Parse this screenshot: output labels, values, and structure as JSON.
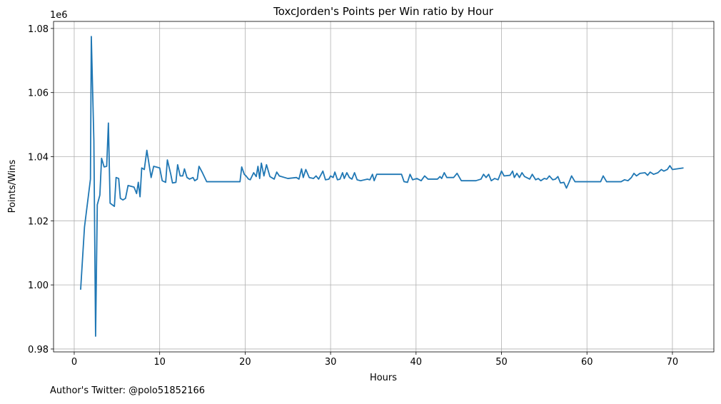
{
  "chart_data": {
    "type": "line",
    "title": "ToxcJorden's Points per Win ratio by Hour",
    "xlabel": "Hours",
    "ylabel": "Points/Wins",
    "offset_label": "1e6",
    "footnote": "Author's Twitter: @polo51852166",
    "color": "#1f77b4",
    "grid": true,
    "xlim": [
      -2.42,
      74.85
    ],
    "ylim": [
      0.9791,
      1.0822
    ],
    "xticks": [
      0,
      10,
      20,
      30,
      40,
      50,
      60,
      70
    ],
    "yticks": [
      0.98,
      {
        "value": 1,
        "label": "1.00"
      },
      1.02,
      1.04,
      1.06,
      1.08
    ],
    "x": [
      0.75,
      1.2,
      1.9,
      2.0,
      2.3,
      2.5,
      2.7,
      3.0,
      3.2,
      3.5,
      3.8,
      4.0,
      4.2,
      4.7,
      4.9,
      5.2,
      5.4,
      5.7,
      6.0,
      6.3,
      7.0,
      7.3,
      7.5,
      7.7,
      7.9,
      8.2,
      8.5,
      9.0,
      9.3,
      10.0,
      10.3,
      10.7,
      10.9,
      11.3,
      11.5,
      11.9,
      12.1,
      12.4,
      12.7,
      12.9,
      13.2,
      13.5,
      13.9,
      14.1,
      14.4,
      14.6,
      15.0,
      15.5,
      19.4,
      19.6,
      19.9,
      20.1,
      20.4,
      20.6,
      21.0,
      21.3,
      21.5,
      21.7,
      21.9,
      22.2,
      22.5,
      22.9,
      23.4,
      23.7,
      24.0,
      25.0,
      26.0,
      26.3,
      26.6,
      26.8,
      27.1,
      27.5,
      28.0,
      28.3,
      28.6,
      29.1,
      29.4,
      29.8,
      30.0,
      30.3,
      30.5,
      30.8,
      31.1,
      31.4,
      31.6,
      31.9,
      32.2,
      32.5,
      32.8,
      33.1,
      33.5,
      34.3,
      34.6,
      34.9,
      35.1,
      35.4,
      38.3,
      38.6,
      39.0,
      39.3,
      39.6,
      40.1,
      40.6,
      41.0,
      41.4,
      42.5,
      42.8,
      43.0,
      43.3,
      43.6,
      44.4,
      44.8,
      45.3,
      47.0,
      47.6,
      47.9,
      48.2,
      48.5,
      48.8,
      49.2,
      49.6,
      50.0,
      50.3,
      51.0,
      51.3,
      51.5,
      51.8,
      52.1,
      52.4,
      52.7,
      53.3,
      53.6,
      54.0,
      54.3,
      54.6,
      55.0,
      55.3,
      55.6,
      56.0,
      56.3,
      56.6,
      56.9,
      57.3,
      57.6,
      57.9,
      58.2,
      58.6,
      61.6,
      61.9,
      62.3,
      64.0,
      64.4,
      64.8,
      65.2,
      65.5,
      65.8,
      66.2,
      66.8,
      67.1,
      67.4,
      67.8,
      68.3,
      68.7,
      69.0,
      69.4,
      69.7,
      70.0,
      71.3
    ],
    "values": [
      0.9985,
      1.018,
      1.033,
      1.0775,
      1.045,
      0.984,
      1.025,
      1.028,
      1.0395,
      1.0368,
      1.037,
      1.0505,
      1.0255,
      1.0245,
      1.0335,
      1.0332,
      1.027,
      1.0265,
      1.027,
      1.031,
      1.0305,
      1.0285,
      1.032,
      1.0275,
      1.0365,
      1.036,
      1.042,
      1.0335,
      1.037,
      1.0365,
      1.0325,
      1.032,
      1.039,
      1.0345,
      1.0318,
      1.032,
      1.0375,
      1.034,
      1.034,
      1.0362,
      1.0335,
      1.033,
      1.0335,
      1.0325,
      1.033,
      1.037,
      1.035,
      1.0322,
      1.0322,
      1.0368,
      1.0345,
      1.034,
      1.033,
      1.0328,
      1.035,
      1.0338,
      1.037,
      1.0332,
      1.038,
      1.034,
      1.0375,
      1.0338,
      1.033,
      1.0352,
      1.034,
      1.0332,
      1.0335,
      1.033,
      1.0362,
      1.0335,
      1.036,
      1.0335,
      1.0332,
      1.034,
      1.033,
      1.0355,
      1.0328,
      1.033,
      1.034,
      1.0335,
      1.0352,
      1.0328,
      1.033,
      1.035,
      1.0332,
      1.035,
      1.0335,
      1.033,
      1.035,
      1.0328,
      1.0325,
      1.033,
      1.0328,
      1.0345,
      1.0325,
      1.0345,
      1.0345,
      1.0322,
      1.032,
      1.0345,
      1.0328,
      1.0332,
      1.0325,
      1.034,
      1.033,
      1.033,
      1.0338,
      1.0332,
      1.035,
      1.0335,
      1.0335,
      1.0348,
      1.0325,
      1.0325,
      1.033,
      1.0345,
      1.0335,
      1.0345,
      1.0325,
      1.0332,
      1.0328,
      1.0355,
      1.034,
      1.0342,
      1.0355,
      1.0335,
      1.0348,
      1.0335,
      1.035,
      1.0338,
      1.033,
      1.0345,
      1.0328,
      1.0332,
      1.0325,
      1.0332,
      1.033,
      1.034,
      1.0328,
      1.033,
      1.0338,
      1.0318,
      1.032,
      1.0302,
      1.032,
      1.034,
      1.0322,
      1.0322,
      1.034,
      1.0322,
      1.0322,
      1.0328,
      1.0325,
      1.0335,
      1.0348,
      1.034,
      1.0348,
      1.035,
      1.0342,
      1.0352,
      1.0345,
      1.035,
      1.036,
      1.0355,
      1.036,
      1.0372,
      1.036,
      1.0365
    ]
  }
}
